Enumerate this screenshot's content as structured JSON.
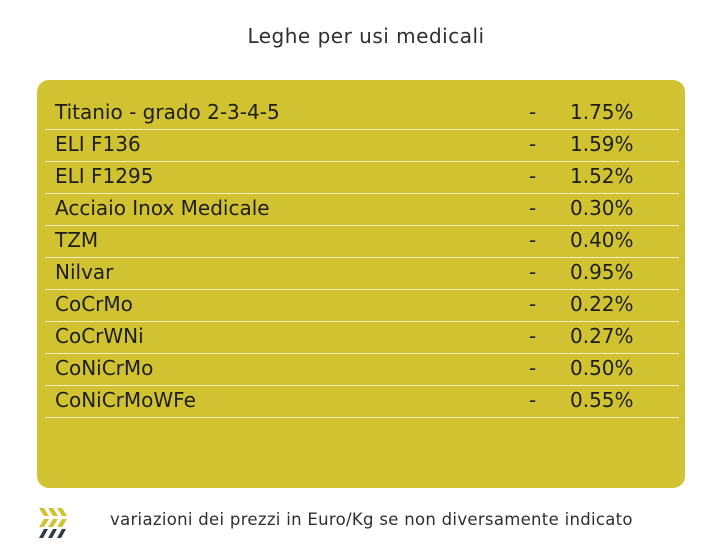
{
  "title": "Leghe per usi medicali",
  "separator": "-",
  "rows": [
    {
      "name": "Titanio - grado 2-3-4-5",
      "value": "1.75%"
    },
    {
      "name": "ELI F136",
      "value": "1.59%"
    },
    {
      "name": "ELI F1295",
      "value": "1.52%"
    },
    {
      "name": "Acciaio Inox Medicale",
      "value": "0.30%"
    },
    {
      "name": "TZM",
      "value": "0.40%"
    },
    {
      "name": "Nilvar",
      "value": "0.95%"
    },
    {
      "name": "CoCrMo",
      "value": "0.22%"
    },
    {
      "name": "CoCrWNi",
      "value": "0.27%"
    },
    {
      "name": "CoNiCrMo",
      "value": "0.50%"
    },
    {
      "name": "CoNiCrMoWFe",
      "value": "0.55%"
    }
  ],
  "footer": "variazioni dei prezzi in Euro/Kg se non diversamente indicato",
  "colors": {
    "panel": "#d1c231",
    "logo_yellow": "#d1c231",
    "logo_dark": "#2b3a45"
  },
  "icons": {
    "logo": "chevron-stripes-logo-icon"
  }
}
